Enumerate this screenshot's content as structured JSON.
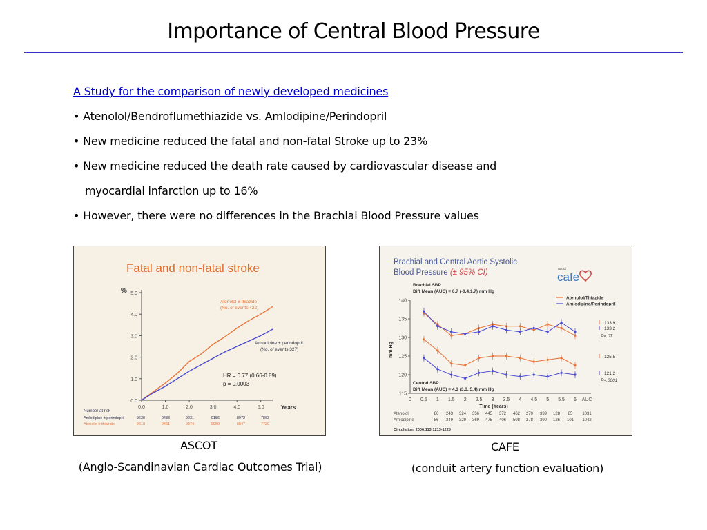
{
  "slide": {
    "title": "Importance of Central Blood Pressure",
    "link_text": "A Study for the comparison of newly developed medicines",
    "bullets": [
      "• Atenolol/Bendroflumethiazide vs. Amlodipine/Perindopril",
      "• New medicine reduced the fatal and non-fatal Stroke up to 23%",
      "• New medicine reduced the death rate caused by cardiovascular disease and",
      "myocardial infarction up to 16%",
      "• However, there were no differences in the Brachial Blood Pressure values"
    ]
  },
  "captions": {
    "ascot_name": "ASCOT",
    "ascot_full": "(Anglo-Scandinavian Cardiac Outcomes Trial)",
    "cafe_name": "CAFE",
    "cafe_full": "(conduit artery function evaluation)"
  },
  "colors": {
    "rule": "#3333cc",
    "link": "#0000cc",
    "orange": "#e8743a",
    "blue": "#4a4ad0",
    "ascot_title": "#e06a2a",
    "cafe_title": "#4a5a9a",
    "cafe_logo": "#3a7ac8"
  },
  "chart_data": [
    {
      "type": "line",
      "title": "Fatal and non-fatal stroke",
      "ylabel": "%",
      "xlabel": "Years",
      "xlim": [
        0,
        5.5
      ],
      "ylim": [
        0,
        5
      ],
      "x_ticks": [
        "0.0",
        "1.0",
        "2.0",
        "3.0",
        "4.0",
        "5.0"
      ],
      "y_ticks": [
        "0.0",
        "1.0",
        "2.0",
        "3.0",
        "4.0",
        "5.0"
      ],
      "series": [
        {
          "name": "Atenolol ± thiazide",
          "note": "(No. of events 422)",
          "color": "orange",
          "x": [
            0,
            0.5,
            1.0,
            1.5,
            2.0,
            2.5,
            3.0,
            3.5,
            4.0,
            4.5,
            5.0,
            5.5
          ],
          "y": [
            0,
            0.4,
            0.8,
            1.25,
            1.8,
            2.15,
            2.6,
            2.95,
            3.35,
            3.7,
            4.0,
            4.35
          ]
        },
        {
          "name": "Amlodipine ± perindopril",
          "note": "(No. of events 327)",
          "color": "blue",
          "x": [
            0,
            0.5,
            1.0,
            1.5,
            2.0,
            2.5,
            3.0,
            3.5,
            4.0,
            4.5,
            5.0,
            5.5
          ],
          "y": [
            0,
            0.35,
            0.65,
            1.0,
            1.35,
            1.65,
            1.95,
            2.25,
            2.5,
            2.75,
            3.0,
            3.3
          ]
        }
      ],
      "annotations": [
        "HR = 0.77 (0.66-0.89)",
        "p = 0.0003"
      ],
      "risk_table": {
        "header": "Number at risk",
        "rows": [
          {
            "label": "Amlodipine ± perindopril",
            "values": [
              "9639",
              "9483",
              "9231",
              "9156",
              "8972",
              "7863"
            ]
          },
          {
            "label": "Atenolol ± thiazide",
            "values": [
              "9618",
              "9461",
              "9374",
              "9059",
              "8847",
              "7720"
            ]
          }
        ]
      }
    },
    {
      "type": "line",
      "title": "Brachial and Central Aortic Systolic Blood Pressure",
      "subtitle": "(± 95% CI)",
      "logo_text": "cafe",
      "logo_small": "ascot",
      "ylabel": "mm Hg",
      "xlabel": "Time (Years)",
      "ylim": [
        115,
        140
      ],
      "y_ticks": [
        "115",
        "120",
        "125",
        "130",
        "135",
        "140"
      ],
      "x_ticks": [
        "0",
        "0.5",
        "1",
        "1.5",
        "2",
        "2.5",
        "3",
        "3.5",
        "4",
        "4.5",
        "5",
        "5.5",
        "6",
        "AUC"
      ],
      "brachial_label": "Brachial SBP",
      "brachial_diff": "Diff Mean (AUC) = 0.7 (-0.4,1.7) mm Hg",
      "central_label": "Central SBP",
      "central_diff": "Diff Mean (AUC) = 4.3 (3.3, 5.4) mm Hg",
      "legend": [
        "Atenolol/Thiazide",
        "Amlodipine/Perindopril"
      ],
      "end_labels": {
        "brachial": [
          "133.9",
          "133.2"
        ],
        "brachial_p": "P=.07",
        "central_orange": "125.5",
        "central_blue": "121.2",
        "central_p": "P<.0001"
      },
      "series": [
        {
          "name": "Atenolol/Thiazide",
          "measure": "Brachial SBP",
          "color": "orange",
          "x": [
            0.5,
            1,
            1.5,
            2,
            2.5,
            3,
            3.5,
            4,
            4.5,
            5,
            5.5,
            6
          ],
          "y": [
            136.5,
            133.5,
            130.5,
            131.0,
            132.5,
            133.5,
            133.0,
            133.0,
            132.0,
            133.5,
            132.5,
            130.5
          ]
        },
        {
          "name": "Amlodipine/Perindopril",
          "measure": "Brachial SBP",
          "color": "blue",
          "x": [
            0.5,
            1,
            1.5,
            2,
            2.5,
            3,
            3.5,
            4,
            4.5,
            5,
            5.5,
            6
          ],
          "y": [
            137.0,
            133.0,
            131.5,
            131.0,
            131.5,
            133.0,
            132.0,
            131.5,
            132.5,
            131.5,
            134.0,
            131.5
          ]
        },
        {
          "name": "Atenolol/Thiazide",
          "measure": "Central SBP",
          "color": "orange",
          "x": [
            0.5,
            1,
            1.5,
            2,
            2.5,
            3,
            3.5,
            4,
            4.5,
            5,
            5.5,
            6
          ],
          "y": [
            129.5,
            126.5,
            123.0,
            122.5,
            124.5,
            125.0,
            125.0,
            124.5,
            123.5,
            124.0,
            124.5,
            122.5
          ]
        },
        {
          "name": "Amlodipine/Perindopril",
          "measure": "Central SBP",
          "color": "blue",
          "x": [
            0.5,
            1,
            1.5,
            2,
            2.5,
            3,
            3.5,
            4,
            4.5,
            5,
            5.5,
            6
          ],
          "y": [
            124.5,
            121.5,
            120.0,
            119.0,
            120.5,
            121.0,
            120.0,
            119.5,
            120.0,
            119.5,
            120.5,
            120.0
          ]
        }
      ],
      "table": {
        "rows": [
          {
            "label": "Atenolol",
            "values": [
              "86",
              "243",
              "324",
              "356",
              "445",
              "372",
              "462",
              "270",
              "339",
              "128",
              "85",
              "1031"
            ]
          },
          {
            "label": "Amlodipine",
            "values": [
              "86",
              "249",
              "329",
              "369",
              "475",
              "406",
              "508",
              "278",
              "390",
              "126",
              "101",
              "1042"
            ]
          }
        ]
      },
      "citation": "Circulation. 2006;113:1213-1225"
    }
  ]
}
